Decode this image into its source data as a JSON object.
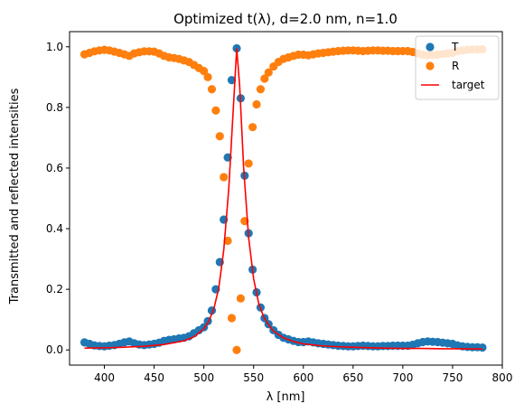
{
  "chart_data": {
    "type": "scatter",
    "title": "Optimized t(λ), d=2.0 nm, n=1.0",
    "xlabel": "λ [nm]",
    "ylabel": "Transmitted and reflected intensities",
    "xlim": [
      365,
      800
    ],
    "ylim": [
      -0.05,
      1.05
    ],
    "xticks": [
      400,
      450,
      500,
      550,
      600,
      650,
      700,
      750,
      800
    ],
    "yticks": [
      0.0,
      0.2,
      0.4,
      0.6,
      0.8,
      1.0
    ],
    "grid": false,
    "legend_position": "top-right",
    "colors": {
      "T": "#1f77b4",
      "R": "#ff7f0e",
      "target": "#ff0000"
    },
    "series": [
      {
        "name": "T",
        "kind": "scatter",
        "x": [
          380,
          385,
          390,
          395,
          400,
          405,
          410,
          415,
          420,
          425,
          430,
          435,
          440,
          445,
          450,
          455,
          460,
          465,
          470,
          475,
          480,
          485,
          490,
          495,
          500,
          504,
          508,
          512,
          516,
          520,
          524,
          528,
          533,
          537,
          541,
          545,
          549,
          553,
          557,
          561,
          565,
          570,
          575,
          580,
          585,
          590,
          595,
          600,
          605,
          610,
          615,
          620,
          625,
          630,
          635,
          640,
          645,
          650,
          655,
          660,
          665,
          670,
          675,
          680,
          685,
          690,
          695,
          700,
          705,
          710,
          715,
          720,
          725,
          730,
          735,
          740,
          745,
          750,
          755,
          760,
          765,
          770,
          775,
          780
        ],
        "y": [
          0.025,
          0.02,
          0.015,
          0.013,
          0.012,
          0.014,
          0.016,
          0.02,
          0.025,
          0.028,
          0.022,
          0.018,
          0.016,
          0.018,
          0.02,
          0.024,
          0.03,
          0.033,
          0.035,
          0.038,
          0.04,
          0.045,
          0.055,
          0.065,
          0.075,
          0.095,
          0.13,
          0.2,
          0.29,
          0.43,
          0.635,
          0.89,
          0.995,
          0.83,
          0.575,
          0.385,
          0.265,
          0.19,
          0.14,
          0.105,
          0.085,
          0.065,
          0.05,
          0.04,
          0.035,
          0.03,
          0.026,
          0.026,
          0.028,
          0.025,
          0.022,
          0.02,
          0.018,
          0.016,
          0.014,
          0.013,
          0.012,
          0.012,
          0.013,
          0.014,
          0.013,
          0.012,
          0.012,
          0.013,
          0.013,
          0.014,
          0.014,
          0.014,
          0.014,
          0.017,
          0.022,
          0.026,
          0.028,
          0.027,
          0.026,
          0.024,
          0.022,
          0.02,
          0.015,
          0.012,
          0.01,
          0.009,
          0.009,
          0.008
        ]
      },
      {
        "name": "R",
        "kind": "scatter",
        "x": [
          380,
          385,
          390,
          395,
          400,
          405,
          410,
          415,
          420,
          425,
          430,
          435,
          440,
          445,
          450,
          455,
          460,
          465,
          470,
          475,
          480,
          485,
          490,
          495,
          500,
          504,
          508,
          512,
          516,
          520,
          524,
          528,
          533,
          537,
          541,
          545,
          549,
          553,
          557,
          561,
          565,
          570,
          575,
          580,
          585,
          590,
          595,
          600,
          605,
          610,
          615,
          620,
          625,
          630,
          635,
          640,
          645,
          650,
          655,
          660,
          665,
          670,
          675,
          680,
          685,
          690,
          695,
          700,
          705,
          710,
          715,
          720,
          725,
          730,
          735,
          740,
          745,
          750,
          755,
          760,
          765,
          770,
          775,
          780
        ],
        "y": [
          0.975,
          0.98,
          0.985,
          0.988,
          0.99,
          0.988,
          0.984,
          0.98,
          0.975,
          0.97,
          0.978,
          0.982,
          0.985,
          0.985,
          0.984,
          0.978,
          0.97,
          0.965,
          0.963,
          0.96,
          0.955,
          0.95,
          0.94,
          0.93,
          0.92,
          0.9,
          0.86,
          0.79,
          0.705,
          0.57,
          0.36,
          0.105,
          0.0,
          0.17,
          0.425,
          0.615,
          0.735,
          0.81,
          0.86,
          0.895,
          0.915,
          0.935,
          0.95,
          0.96,
          0.965,
          0.97,
          0.974,
          0.974,
          0.972,
          0.975,
          0.978,
          0.98,
          0.982,
          0.984,
          0.986,
          0.987,
          0.988,
          0.988,
          0.987,
          0.986,
          0.987,
          0.988,
          0.988,
          0.987,
          0.987,
          0.986,
          0.986,
          0.986,
          0.986,
          0.983,
          0.978,
          0.974,
          0.972,
          0.973,
          0.974,
          0.976,
          0.978,
          0.98,
          0.985,
          0.988,
          0.99,
          0.991,
          0.991,
          0.992
        ]
      },
      {
        "name": "target",
        "kind": "line",
        "x": [
          380,
          400,
          420,
          440,
          460,
          480,
          490,
          500,
          505,
          510,
          515,
          520,
          525,
          530,
          533,
          536,
          540,
          545,
          550,
          555,
          560,
          565,
          570,
          580,
          590,
          600,
          620,
          640,
          660,
          680,
          700,
          720,
          740,
          760,
          780
        ],
        "y": [
          0.006,
          0.007,
          0.009,
          0.012,
          0.018,
          0.03,
          0.043,
          0.07,
          0.095,
          0.135,
          0.205,
          0.33,
          0.53,
          0.82,
          0.995,
          0.87,
          0.6,
          0.37,
          0.235,
          0.155,
          0.11,
          0.083,
          0.062,
          0.04,
          0.028,
          0.02,
          0.013,
          0.01,
          0.008,
          0.006,
          0.005,
          0.005,
          0.004,
          0.004,
          0.003
        ]
      }
    ]
  }
}
